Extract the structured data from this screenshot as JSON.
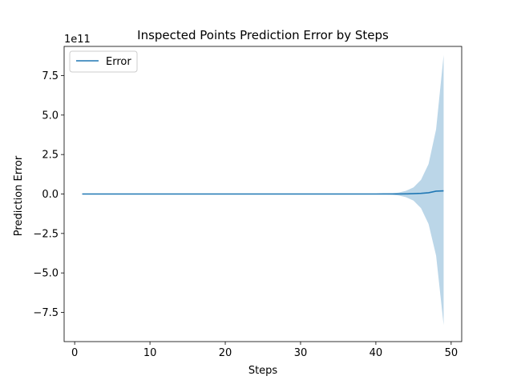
{
  "chart_data": {
    "type": "line",
    "title": "Inspected Points Prediction Error by Steps",
    "xlabel": "Steps",
    "ylabel": "Prediction Error",
    "y_multiplier_label": "1e11",
    "xlim": [
      -1.4,
      51.4
    ],
    "ylim": [
      -9.35,
      9.35
    ],
    "x_ticks": [
      0,
      10,
      20,
      30,
      40,
      50
    ],
    "y_ticks": [
      -7.5,
      -5.0,
      -2.5,
      0.0,
      2.5,
      5.0,
      7.5
    ],
    "x_tick_labels": [
      "0",
      "10",
      "20",
      "30",
      "40",
      "50"
    ],
    "y_tick_labels": [
      "−7.5",
      "−5.0",
      "−2.5",
      "0.0",
      "2.5",
      "5.0",
      "7.5"
    ],
    "grid": false,
    "legend_position": "upper-left",
    "series": [
      {
        "name": "Error",
        "color": "#1f77b4",
        "band_color": "#1f77b4",
        "x": [
          1,
          2,
          3,
          4,
          5,
          6,
          7,
          8,
          9,
          10,
          11,
          12,
          13,
          14,
          15,
          16,
          17,
          18,
          19,
          20,
          21,
          22,
          23,
          24,
          25,
          26,
          27,
          28,
          29,
          30,
          31,
          32,
          33,
          34,
          35,
          36,
          37,
          38,
          39,
          40,
          41,
          42,
          43,
          44,
          45,
          46,
          47,
          48,
          49
        ],
        "y": [
          0,
          0,
          0,
          0,
          0,
          0,
          0,
          0,
          0,
          0,
          0,
          0,
          0,
          0,
          0,
          0,
          0,
          0,
          0,
          0,
          0,
          0,
          0,
          0,
          0,
          0,
          0,
          0,
          0,
          0,
          0,
          0,
          0,
          0,
          0,
          0,
          0,
          0,
          0,
          0,
          0.001,
          0.002,
          0.004,
          0.009,
          0.02,
          0.04,
          0.08,
          0.18,
          0.2
        ],
        "band_upper": [
          0,
          0,
          0,
          0,
          0,
          0,
          0,
          0,
          0,
          0,
          0,
          0,
          0,
          0,
          0,
          0,
          0,
          0,
          0,
          0,
          0,
          0,
          0,
          0,
          0,
          0,
          0,
          0,
          0,
          0,
          0,
          0,
          0,
          0,
          0,
          0,
          0,
          0,
          0,
          0.01,
          0.02,
          0.04,
          0.09,
          0.2,
          0.42,
          0.9,
          1.9,
          4.1,
          8.8
        ],
        "band_lower": [
          0,
          0,
          0,
          0,
          0,
          0,
          0,
          0,
          0,
          0,
          0,
          0,
          0,
          0,
          0,
          0,
          0,
          0,
          0,
          0,
          0,
          0,
          0,
          0,
          0,
          0,
          0,
          0,
          0,
          0,
          0,
          0,
          0,
          0,
          0,
          0,
          0,
          0,
          0,
          -0.01,
          -0.02,
          -0.04,
          -0.09,
          -0.2,
          -0.42,
          -0.9,
          -1.9,
          -3.9,
          -8.3
        ]
      }
    ]
  }
}
